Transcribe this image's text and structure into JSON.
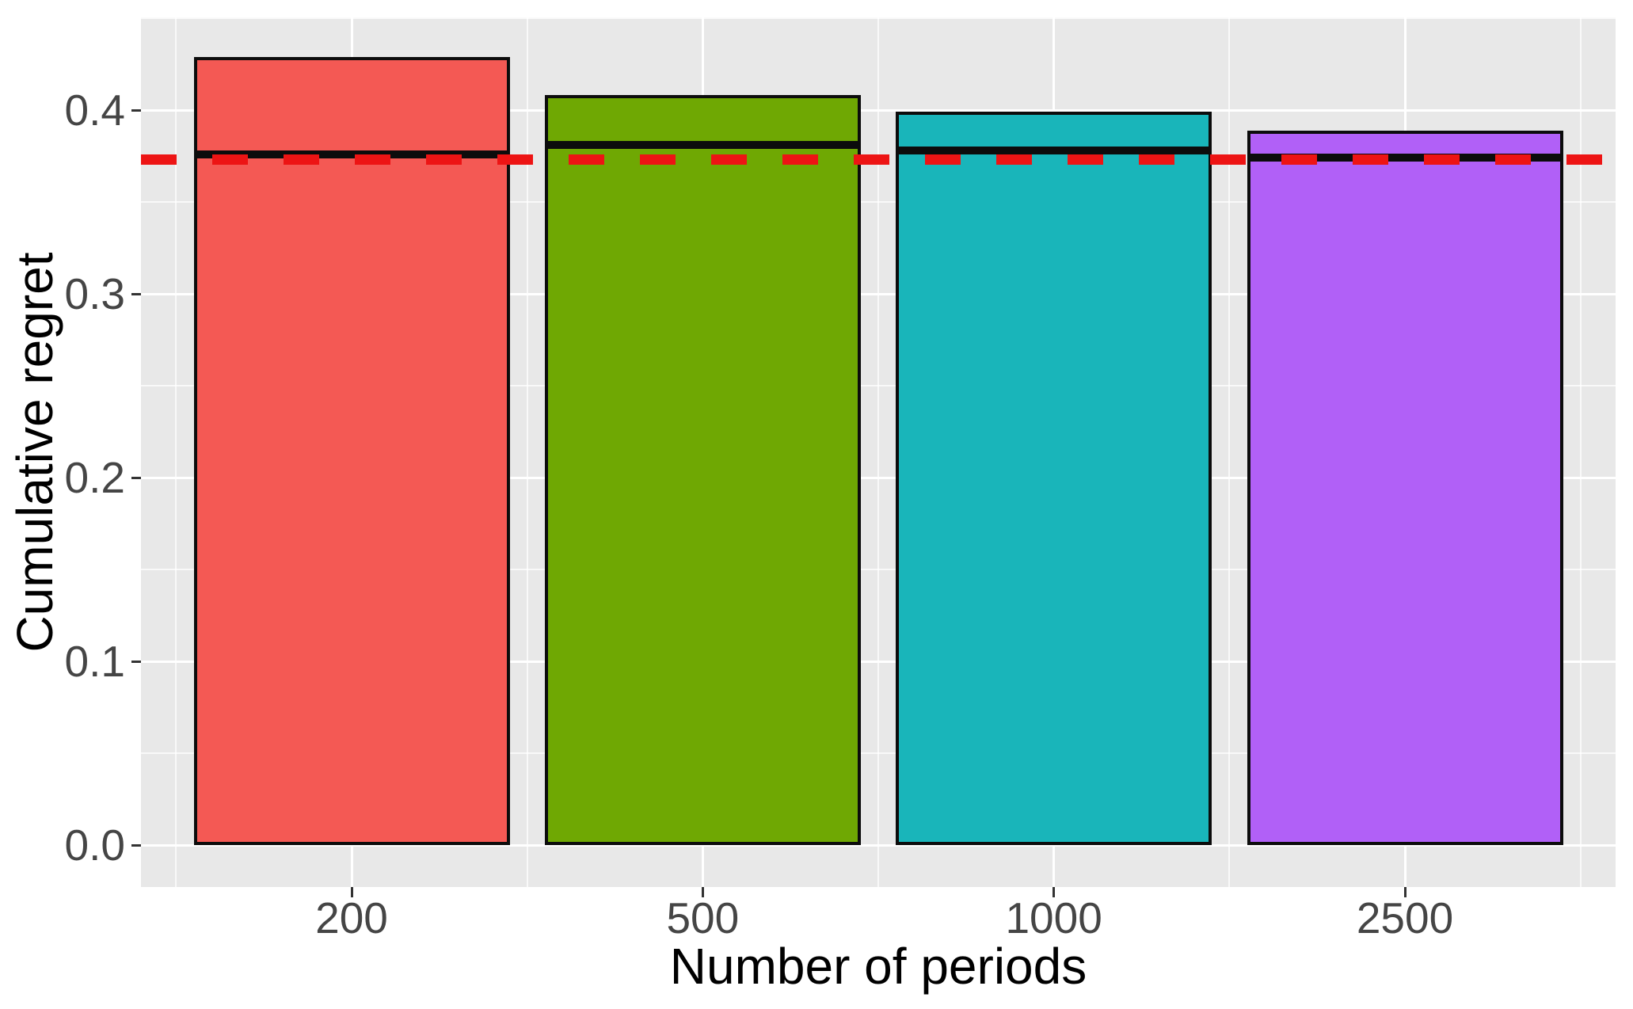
{
  "chart_data": {
    "type": "bar",
    "title": "",
    "xlabel": "Number of periods",
    "ylabel": "Cumulative regret",
    "categories": [
      "200",
      "500",
      "1000",
      "2500"
    ],
    "series": [
      {
        "name": "Cumulative regret",
        "values": [
          0.429,
          0.408,
          0.399,
          0.389
        ]
      }
    ],
    "bar_colors": [
      "#F45954",
      "#6FA803",
      "#19B5BA",
      "#B160F7"
    ],
    "bar_border_color": "#0C0C0C",
    "bar_mean_lines": {
      "description": "solid black horizontal segment drawn across each bar",
      "color": "#0C0C0C",
      "values": [
        0.376,
        0.381,
        0.378,
        0.374
      ]
    },
    "reference_line": {
      "description": "dashed horizontal line spanning full panel",
      "value": 0.373,
      "color": "#ED1414",
      "style": "dashed"
    },
    "yticks": [
      0.0,
      0.1,
      0.2,
      0.3,
      0.4
    ],
    "ytick_labels": [
      "0.0",
      "0.1",
      "0.2",
      "0.3",
      "0.4"
    ],
    "yticks_minor": [
      0.05,
      0.15,
      0.25,
      0.35,
      0.45
    ],
    "ylim": [
      -0.022,
      0.45
    ],
    "legend": false,
    "grid": "white major and minor gridlines on gray panel",
    "panel_bg": "#E8E8E8",
    "grid_major_color": "#FFFFFF",
    "grid_minor_color": "#FFFFFF",
    "tick_mark_color": "#333333",
    "tick_label_color": "#454545"
  }
}
